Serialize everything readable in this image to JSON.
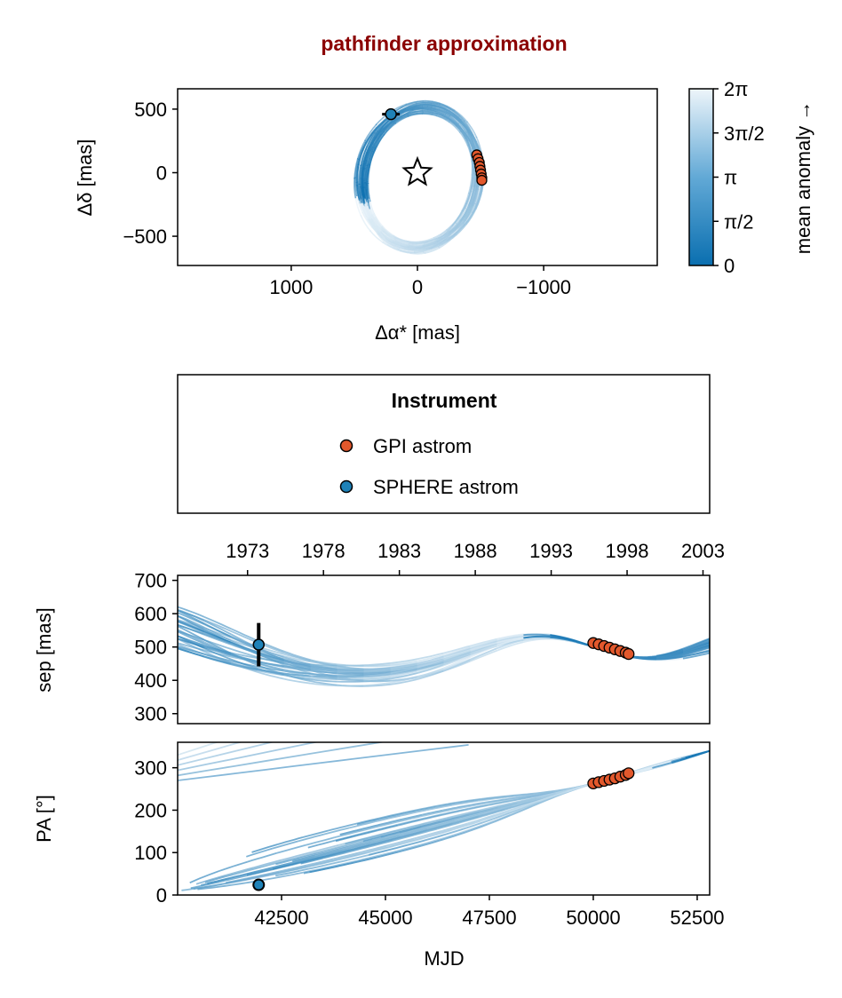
{
  "title": "pathfinder approximation",
  "colors": {
    "title": "#8b0000",
    "orbit_dark": "#0a6fb0",
    "orbit_light": "#e6f1f8",
    "gpi": "#e2582c",
    "sphere": "#1f82b8"
  },
  "chart_data": [
    {
      "type": "scatter",
      "name": "sky-plane",
      "xlabel": "Δα* [mas]",
      "ylabel": "Δδ [mas]",
      "xlim": [
        1900,
        -1900
      ],
      "ylim": [
        -730,
        660
      ],
      "x_inverted": true,
      "xticks": [
        1000,
        0,
        -1000
      ],
      "xtick_labels": [
        "1000",
        "0",
        "−1000"
      ],
      "yticks": [
        500,
        0,
        -500
      ],
      "ytick_labels": [
        "500",
        "0",
        "−500"
      ],
      "grid": false,
      "star": {
        "x": 0,
        "y": 0
      },
      "orbit_family": {
        "center": [
          -20,
          -35
        ],
        "semi_x": 460,
        "semi_y": 560,
        "tilt_deg": 12,
        "count": 30
      },
      "gpi_points": [
        [
          -470,
          140
        ],
        [
          -480,
          110
        ],
        [
          -490,
          80
        ],
        [
          -495,
          50
        ],
        [
          -500,
          20
        ],
        [
          -505,
          -10
        ],
        [
          -510,
          -40
        ],
        [
          -510,
          -60
        ]
      ],
      "sphere_points": [
        {
          "x": 210,
          "y": 460,
          "xerr": 70,
          "yerr": 40
        }
      ]
    },
    {
      "type": "colorbar",
      "label": "mean anomaly →",
      "range": [
        0,
        6.2832
      ],
      "tick_labels": [
        "0",
        "π/2",
        "π",
        "3π/2",
        "2π"
      ]
    },
    {
      "type": "legend",
      "title": "Instrument",
      "entries": [
        {
          "label": "GPI astrom",
          "color": "#e2582c"
        },
        {
          "label": "SPHERE astrom",
          "color": "#1f82b8"
        }
      ]
    },
    {
      "type": "line",
      "name": "separation",
      "xlabel": "",
      "ylabel": "sep [mas]",
      "xlim": [
        40000,
        52800
      ],
      "ylim": [
        270,
        715
      ],
      "yticks": [
        300,
        400,
        500,
        600,
        700
      ],
      "top_axis_years": [
        1973,
        1978,
        1983,
        1988,
        1993,
        1998,
        2003
      ],
      "gpi_points": [
        [
          50000,
          512
        ],
        [
          50130,
          508
        ],
        [
          50260,
          503
        ],
        [
          50390,
          498
        ],
        [
          50520,
          493
        ],
        [
          50650,
          488
        ],
        [
          50780,
          483
        ],
        [
          50850,
          479
        ]
      ],
      "sphere_points": [
        {
          "x": 41950,
          "y": 507,
          "yerr": 65
        }
      ]
    },
    {
      "type": "line",
      "name": "position-angle",
      "xlabel": "MJD",
      "ylabel": "PA [°]",
      "xlim": [
        40000,
        52800
      ],
      "ylim": [
        0,
        360
      ],
      "xticks": [
        42500,
        45000,
        47500,
        50000,
        52500
      ],
      "yticks": [
        0,
        100,
        200,
        300
      ],
      "gpi_points": [
        [
          50000,
          263
        ],
        [
          50130,
          266
        ],
        [
          50260,
          269
        ],
        [
          50390,
          272
        ],
        [
          50520,
          275
        ],
        [
          50650,
          279
        ],
        [
          50780,
          283
        ],
        [
          50850,
          287
        ]
      ],
      "sphere_points": [
        {
          "x": 41950,
          "y": 24,
          "yerr": 2
        }
      ]
    }
  ]
}
